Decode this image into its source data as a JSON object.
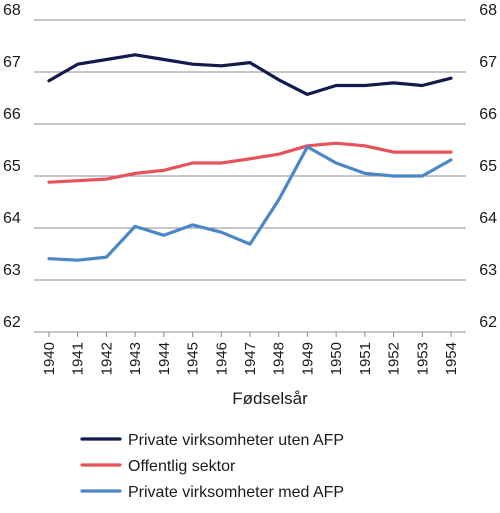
{
  "chart_data": {
    "type": "line",
    "title": "",
    "xlabel": "Fødselsår",
    "ylabel": "",
    "x": [
      1940,
      1941,
      1942,
      1943,
      1944,
      1945,
      1946,
      1947,
      1948,
      1949,
      1950,
      1951,
      1952,
      1953,
      1954
    ],
    "x_tick_labels": [
      "1940",
      "1941",
      "1942",
      "1943",
      "1944",
      "1945",
      "1946",
      "1947",
      "1948",
      "1949",
      "1950",
      "1951",
      "1952",
      "1953",
      "1954"
    ],
    "ylim": [
      62,
      68
    ],
    "y_ticks": [
      62,
      63,
      64,
      65,
      66,
      67,
      68
    ],
    "y_tick_labels": [
      "62",
      "63",
      "64",
      "65",
      "66",
      "67",
      "68"
    ],
    "y_axis_both_sides": true,
    "grid": "horizontal",
    "legend_placement": "bottom",
    "series": [
      {
        "name": "Private virksomheter uten AFP",
        "color": "#131a4e",
        "values": [
          66.83,
          67.15,
          67.24,
          67.33,
          67.24,
          67.15,
          67.12,
          67.18,
          66.85,
          66.57,
          66.74,
          66.74,
          66.79,
          66.74,
          66.88
        ]
      },
      {
        "name": "Offentlig sektor",
        "color": "#e8525a",
        "values": [
          64.88,
          64.91,
          64.94,
          65.05,
          65.11,
          65.25,
          65.25,
          65.33,
          65.42,
          65.58,
          65.63,
          65.58,
          65.46,
          65.46,
          65.46
        ]
      },
      {
        "name": "Private virksomheter med AFP",
        "color": "#4a86c8",
        "values": [
          63.41,
          63.38,
          63.44,
          64.03,
          63.86,
          64.06,
          63.92,
          63.69,
          64.54,
          65.56,
          65.25,
          65.05,
          65.0,
          65.0,
          65.31
        ]
      }
    ]
  }
}
